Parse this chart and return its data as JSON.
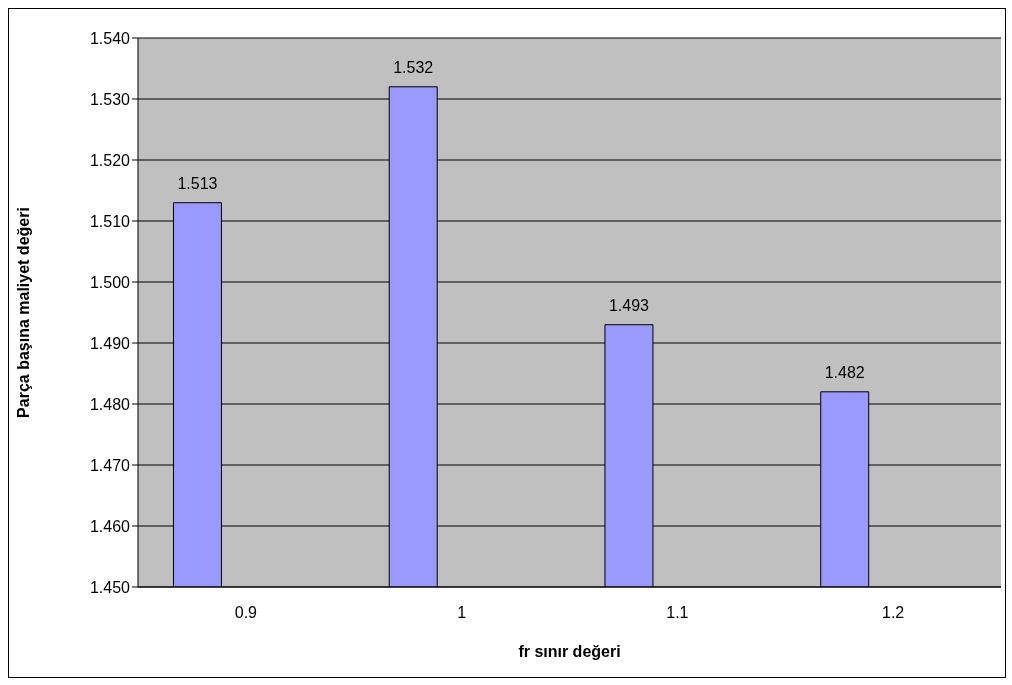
{
  "chart_data": {
    "type": "bar",
    "xlabel": "fr sınır değeri",
    "ylabel": "Parça başına maliyet değeri",
    "categories": [
      "0.9",
      "1",
      "1.1",
      "1.2"
    ],
    "values": [
      1.513,
      1.532,
      1.493,
      1.482
    ],
    "color": "#9999ff",
    "ylim": [
      1.45,
      1.54
    ],
    "yticks": [
      {
        "value": 1.45,
        "label": "1.450"
      },
      {
        "value": 1.46,
        "label": "1.460"
      },
      {
        "value": 1.47,
        "label": "1.470"
      },
      {
        "value": 1.48,
        "label": "1.480"
      },
      {
        "value": 1.49,
        "label": "1.490"
      },
      {
        "value": 1.5,
        "label": "1.500"
      },
      {
        "value": 1.51,
        "label": "1.510"
      },
      {
        "value": 1.52,
        "label": "1.520"
      },
      {
        "value": 1.53,
        "label": "1.530"
      },
      {
        "value": 1.54,
        "label": "1.540"
      }
    ],
    "grid": "y",
    "data_labels": true,
    "legend": false
  }
}
